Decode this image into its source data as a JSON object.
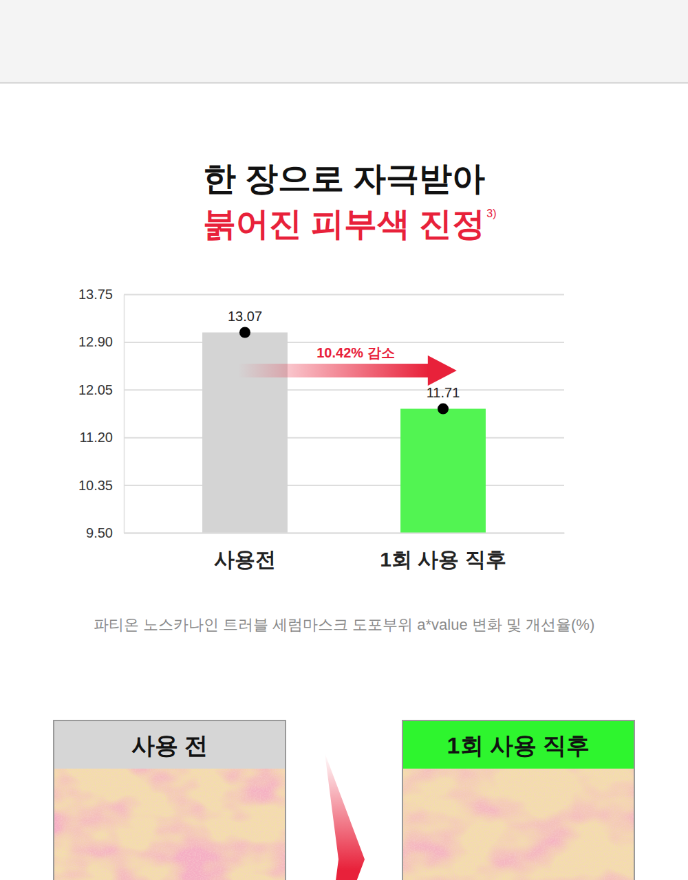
{
  "chart_data": {
    "type": "bar",
    "title": "한 장으로 자극받아",
    "subtitle": "붉어진 피부색 진정",
    "subtitle_note": "3)",
    "categories": [
      "사용전",
      "1회 사용 직후"
    ],
    "values": [
      13.07,
      11.71
    ],
    "colors": [
      "#d4d4d4",
      "#52f452"
    ],
    "ylim": [
      9.5,
      13.75
    ],
    "yticks": [
      {
        "value": 9.5,
        "label": "9.50"
      },
      10.35,
      {
        "value": 11.2,
        "label": "11.20"
      },
      12.05,
      {
        "value": 12.9,
        "label": "12.90"
      },
      13.75
    ],
    "grid": true,
    "data_labels": true,
    "annotations": [
      {
        "text": "10.42% 감소"
      }
    ],
    "caption": "파티온 노스카나인 트러블 세럼마스크 도포부위 a*value 변화 및 개선율(%)"
  },
  "panels": [
    {
      "label": "사용 전",
      "color": "#d6d6d6"
    },
    {
      "label": "1회 사용 직후",
      "color": "#2ef52e"
    }
  ]
}
